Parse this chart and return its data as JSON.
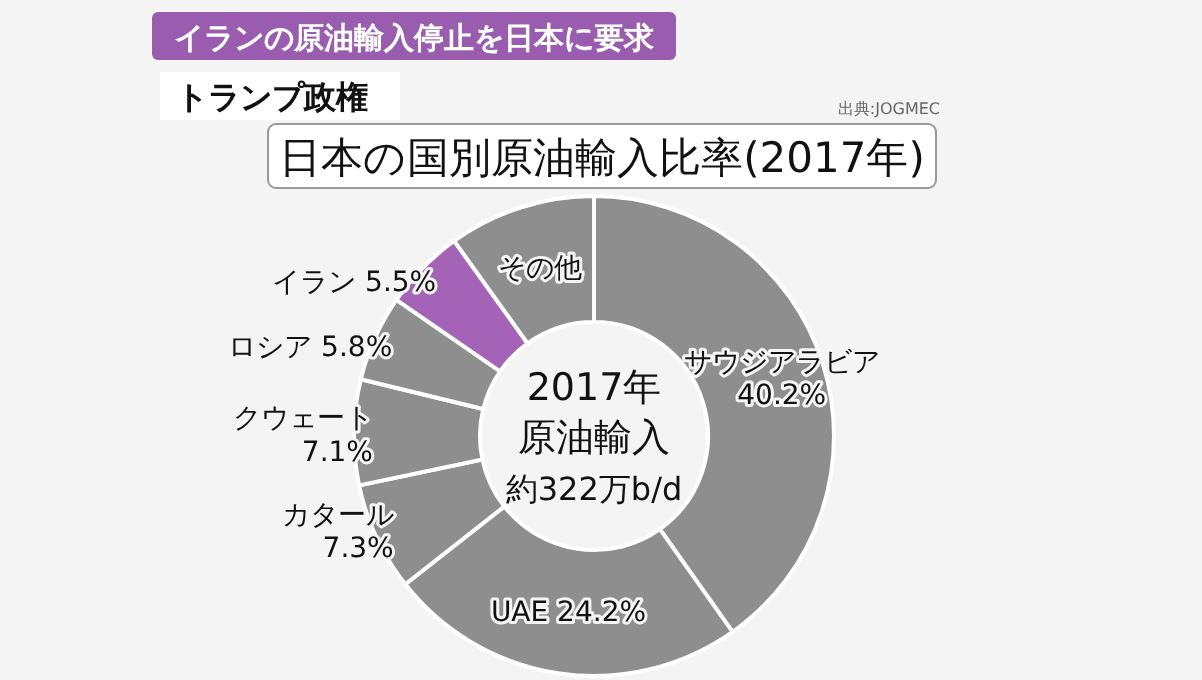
{
  "chart_data": {
    "type": "donut",
    "title": "日本の国別原油輸入比率(2017年)",
    "categories": [
      "サウジアラビア",
      "UAE",
      "カタール",
      "クウェート",
      "ロシア",
      "イラン",
      "その他"
    ],
    "values": [
      40.2,
      24.2,
      7.3,
      7.1,
      5.8,
      5.5,
      9.9
    ],
    "value_labels": [
      "40.2%",
      "24.2%",
      "7.3%",
      "7.1%",
      "5.8%",
      "5.5%",
      null
    ],
    "colors": [
      "#8e8e8e",
      "#8e8e8e",
      "#8e8e8e",
      "#8e8e8e",
      "#8e8e8e",
      "#a563b8",
      "#8e8e8e"
    ],
    "annotations": [
      "イランの原油輸入停止を日本に要求",
      "トランプ政権",
      "出典:JOGMEC",
      "2017年",
      "原油輸入",
      "約322万b/d"
    ]
  }
}
